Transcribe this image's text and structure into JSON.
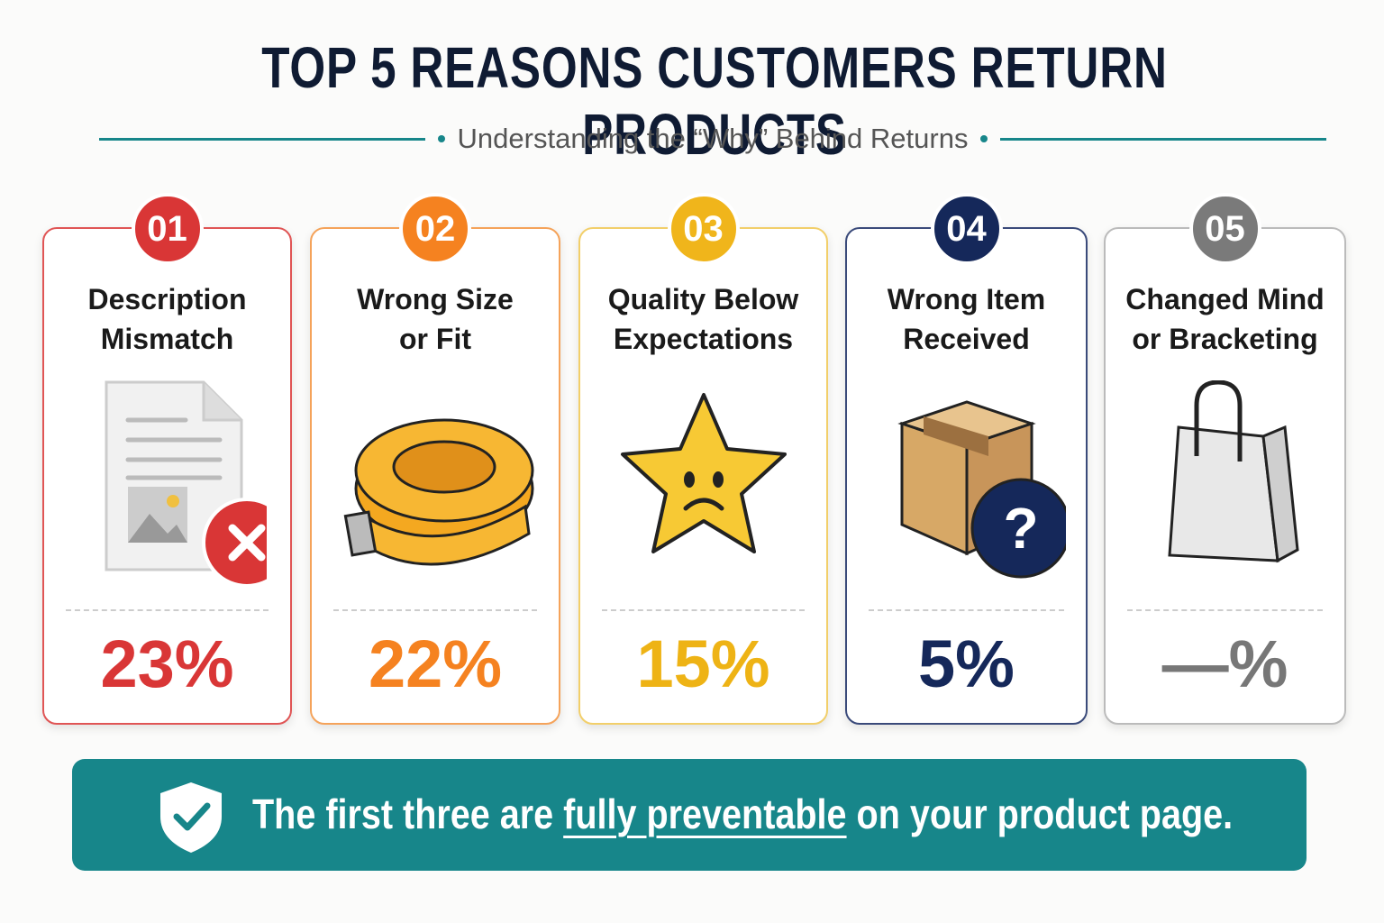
{
  "header": {
    "title": "TOP 5 REASONS CUSTOMERS RETURN PRODUCTS",
    "subtitle": "Understanding the “Why” Behind Returns"
  },
  "cards": [
    {
      "number": "01",
      "title_lines": [
        "Description",
        "Mismatch"
      ],
      "value": "23%"
    },
    {
      "number": "02",
      "title_lines": [
        "Wrong Size",
        "or Fit"
      ],
      "value": "22%"
    },
    {
      "number": "03",
      "title_lines": [
        "Quality Below",
        "Expectations"
      ],
      "value": "15%"
    },
    {
      "number": "04",
      "title_lines": [
        "Wrong Item",
        "Received"
      ],
      "value": "5%"
    },
    {
      "number": "05",
      "title_lines": [
        "Changed Mind",
        "or Bracketing"
      ],
      "value": "—%"
    }
  ],
  "footer": {
    "before": "The first three are",
    "highlight": "fully preventable",
    "after": "on your product page."
  }
}
